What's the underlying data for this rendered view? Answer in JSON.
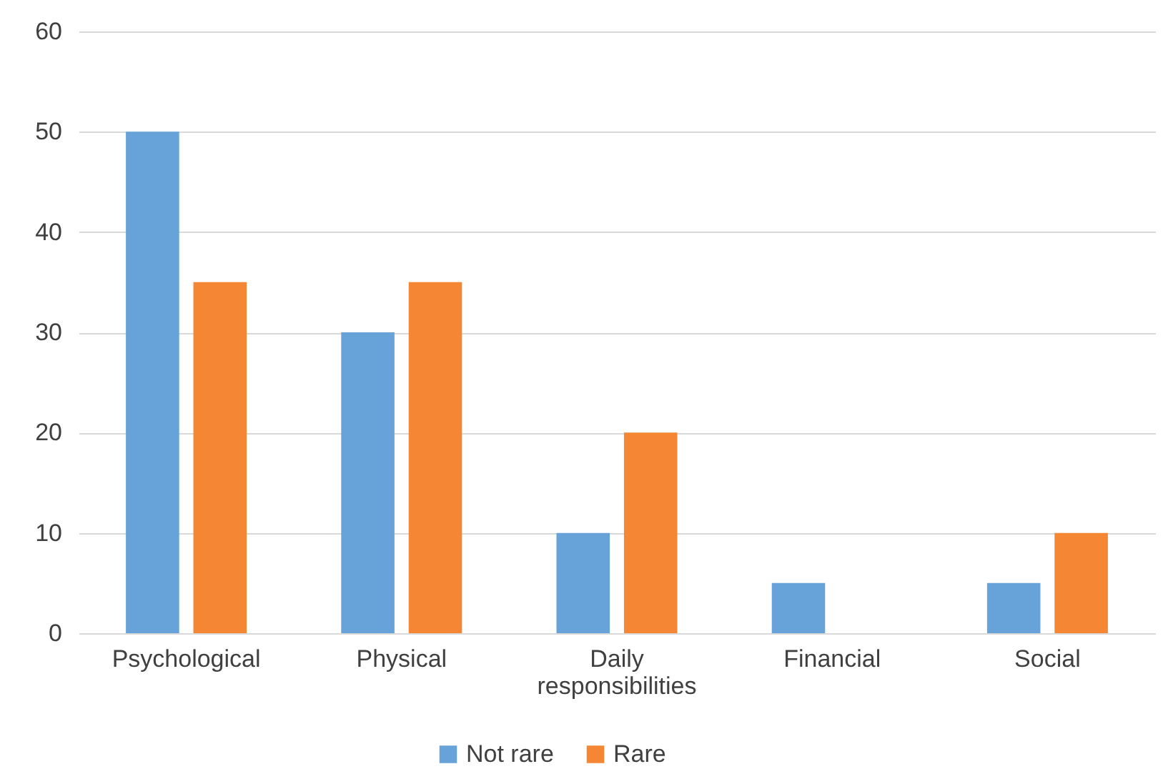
{
  "chart_data": {
    "type": "bar",
    "categories": [
      "Psychological",
      "Physical",
      "Daily responsibilities",
      "Financial",
      "Social"
    ],
    "series": [
      {
        "name": "Not rare",
        "color": "#67a3d9",
        "values": [
          50,
          30,
          10,
          5,
          5
        ]
      },
      {
        "name": "Rare",
        "color": "#f58634",
        "values": [
          35,
          35,
          20,
          0,
          10
        ]
      }
    ],
    "ylim": [
      0,
      60
    ],
    "yticks": [
      0,
      10,
      20,
      30,
      40,
      50,
      60
    ],
    "grid": "y",
    "legend": "bottom"
  }
}
